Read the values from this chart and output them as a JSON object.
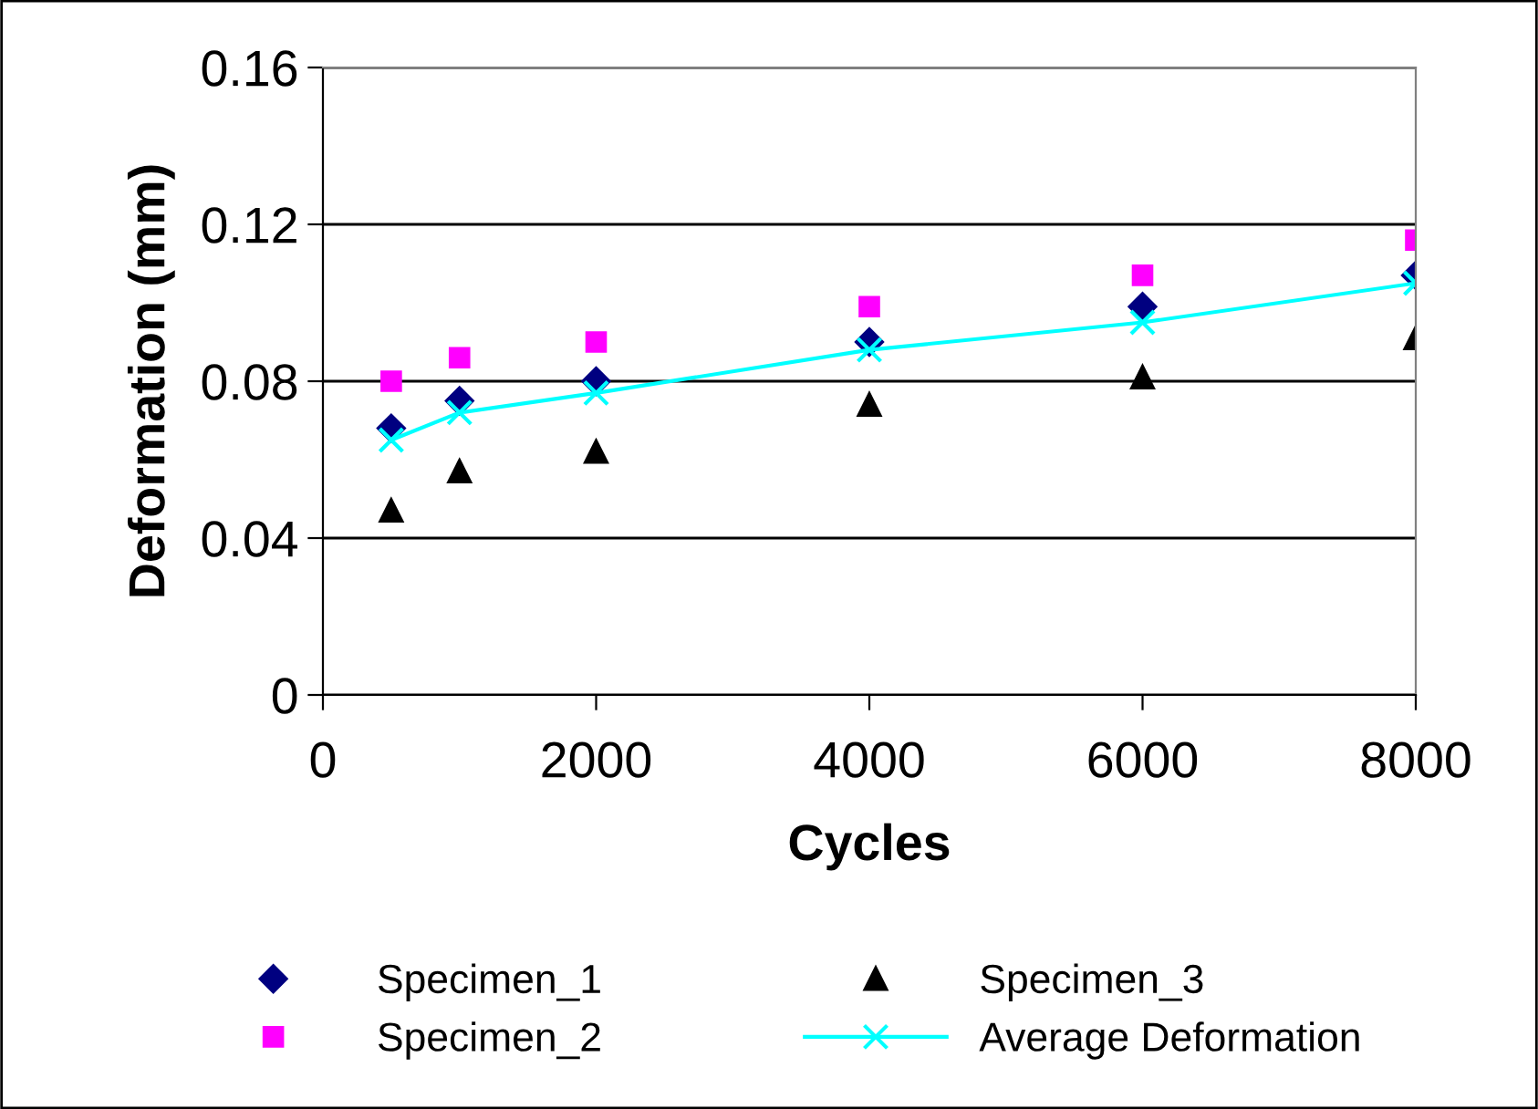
{
  "chart_data": {
    "type": "scatter",
    "xlabel": "Cycles",
    "ylabel": "Deformation (mm)",
    "x": [
      500,
      1000,
      2000,
      4000,
      6000,
      8000
    ],
    "series": [
      {
        "name": "Specimen_1",
        "color": "#000080",
        "marker": "diamond",
        "values": [
          0.068,
          0.075,
          0.08,
          0.09,
          0.099,
          0.107
        ]
      },
      {
        "name": "Specimen_2",
        "color": "#ff00ff",
        "marker": "square",
        "values": [
          0.08,
          0.086,
          0.09,
          0.099,
          0.107,
          0.116
        ]
      },
      {
        "name": "Specimen_3",
        "color": "#000000",
        "marker": "triangle",
        "values": [
          0.047,
          0.057,
          0.062,
          0.074,
          0.081,
          0.091
        ]
      },
      {
        "name": "Average Deformation",
        "type": "line",
        "color": "#00ffff",
        "marker": "cross",
        "values": [
          0.065,
          0.072,
          0.077,
          0.088,
          0.095,
          0.105
        ]
      }
    ],
    "xlim": [
      0,
      8000
    ],
    "xticks": [
      0,
      2000,
      4000,
      6000,
      8000
    ],
    "ylim": [
      0,
      0.16
    ],
    "yticks": [
      0,
      {
        "value": 0.04,
        "label": "0.04"
      },
      {
        "value": 0.08,
        "label": "0.08"
      },
      {
        "value": 0.12,
        "label": "0.12"
      },
      {
        "value": 0.16,
        "label": "0.16"
      }
    ],
    "grid": "y",
    "legend": "bottom"
  }
}
